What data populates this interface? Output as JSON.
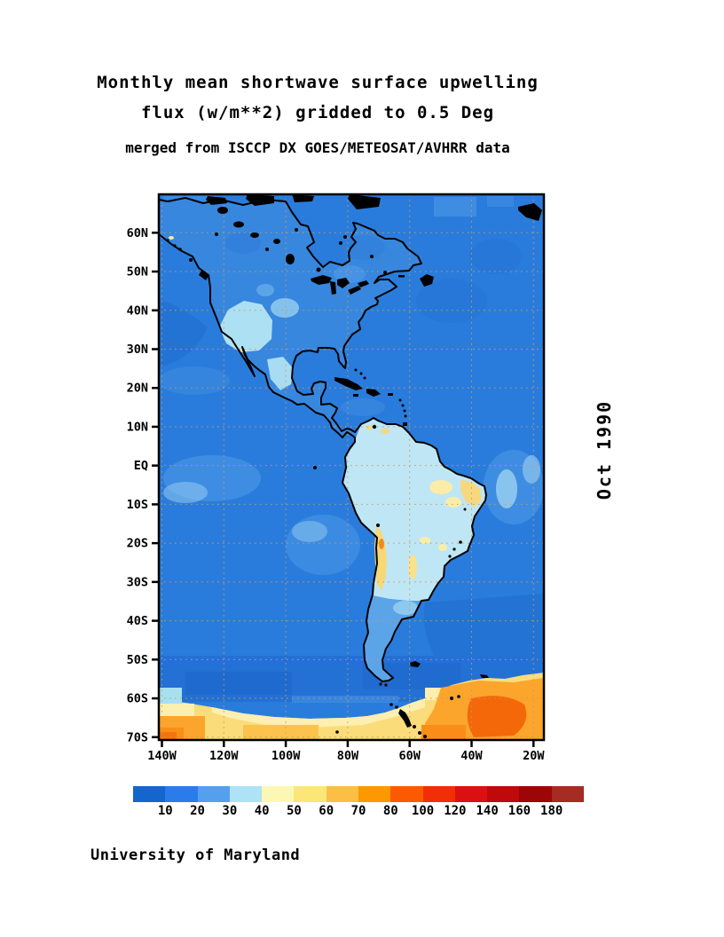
{
  "title": {
    "line1": "Monthly mean shortwave surface upwelling",
    "line2": "flux (w/m**2) gridded to 0.5 Deg",
    "line3": "merged from ISCCP DX GOES/METEOSAT/AVHRR data"
  },
  "side_label": "Oct 1990",
  "credit": "University of Maryland",
  "map": {
    "lat_ticks": [
      "60N",
      "50N",
      "40N",
      "30N",
      "20N",
      "10N",
      "EQ",
      "10S",
      "20S",
      "30S",
      "40S",
      "50S",
      "60S",
      "70S"
    ],
    "lon_ticks": [
      "140W",
      "120W",
      "100W",
      "80W",
      "60W",
      "40W",
      "20W"
    ],
    "colors": {
      "ocean": "#2A7CDC",
      "ocean_dark": "#2270D2",
      "ocean_deep": "#1D66CB",
      "ocean_light": "#4E9AE8",
      "ocean_pale": "#9CD2F1",
      "land": "#3787DF",
      "land_pale": "#AEE0F3",
      "sa_land": "#BFE6F4",
      "patch_yellow": "#F7D874",
      "patch_pale_yellow": "#FBEDA8",
      "ice_yellow": "#FBDC7A",
      "ice_pale": "#FCEFB0",
      "ice_orange": "#FBA52C",
      "ice_deep_orange": "#F4680A",
      "coastline": "#000000",
      "gridline": "#C89B5E"
    }
  },
  "colorbar": {
    "labels": [
      "10",
      "20",
      "30",
      "40",
      "50",
      "60",
      "70",
      "80",
      "100",
      "120",
      "140",
      "160",
      "180"
    ],
    "colors": [
      "#1566CC",
      "#2A7CE8",
      "#55A0EE",
      "#AEE2F6",
      "#FCF8B4",
      "#FCE678",
      "#FCBE46",
      "#FC9800",
      "#FA5A00",
      "#F22E06",
      "#DC1010",
      "#BE0A0A",
      "#9C0606",
      "#A42C22"
    ]
  },
  "chart_data": {
    "type": "heatmap",
    "title": "Monthly mean shortwave surface upwelling flux (w/m**2) gridded to 0.5 Deg",
    "subtitle": "merged from ISCCP DX GOES/METEOSAT/AVHRR data",
    "date": "Oct 1990",
    "units": "w/m**2",
    "projection": "lat-lon grid",
    "lat_ticks": [
      "60N",
      "50N",
      "40N",
      "30N",
      "20N",
      "10N",
      "EQ",
      "10S",
      "20S",
      "30S",
      "40S",
      "50S",
      "60S",
      "70S"
    ],
    "lon_ticks": [
      "140W",
      "120W",
      "100W",
      "80W",
      "60W",
      "40W",
      "20W"
    ],
    "lat_range": [
      "71S",
      "70N"
    ],
    "lon_range": [
      "141W",
      "17W"
    ],
    "colorbar_levels": [
      10,
      20,
      30,
      40,
      50,
      60,
      70,
      80,
      100,
      120,
      140,
      160,
      180
    ],
    "colorbar_colors": [
      "#1566CC",
      "#2A7CE8",
      "#55A0EE",
      "#AEE2F6",
      "#FCF8B4",
      "#FCE678",
      "#FCBE46",
      "#FC9800",
      "#FA5A00",
      "#F22E06",
      "#DC1010",
      "#BE0A0A",
      "#9C0606",
      "#A42C22"
    ],
    "legend_position": "bottom",
    "grid": "dotted 10-degree latitude / 20-degree longitude lines",
    "regions": [
      {
        "area": "open ocean (tropics and midlatitudes)",
        "value_range": "0-20"
      },
      {
        "area": "North America / Canada land",
        "value_range": "10-30"
      },
      {
        "area": "US southwest and Mexico interior",
        "value_range": "30-40"
      },
      {
        "area": "South America (Amazon basin, Brazil)",
        "value_range": "30-50"
      },
      {
        "area": "Andes altiplano and NE Brazil patches",
        "value_range": "50-80"
      },
      {
        "area": "Antarctic sea-ice zone south of ~60S",
        "value_range": "40-120"
      }
    ]
  }
}
